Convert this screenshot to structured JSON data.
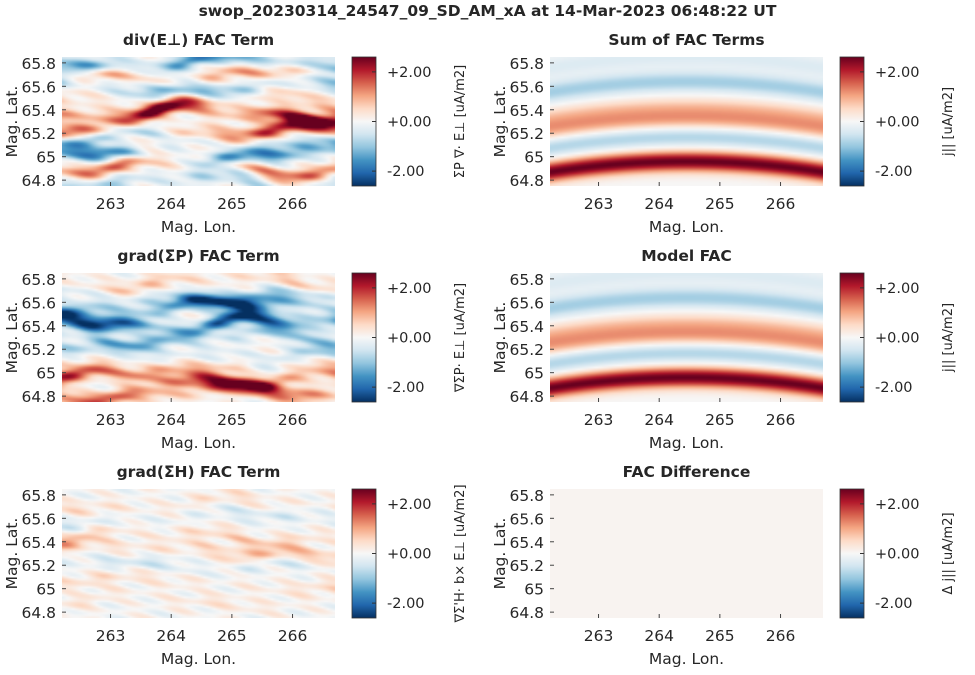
{
  "suptitle": "swop_20230314_24547_09_SD_AM_xA at 14-Mar-2023 06:48:22 UT",
  "colors": {
    "colormap": [
      "#053061",
      "#2166ac",
      "#4393c3",
      "#92c5de",
      "#d1e5f0",
      "#f7f7f7",
      "#fddbc7",
      "#f4a582",
      "#d6604d",
      "#b2182b",
      "#67001f"
    ],
    "background": "#ffffff",
    "text": "#262626"
  },
  "chart_data": [
    {
      "type": "heatmap",
      "title": "div(E⊥) FAC Term",
      "xlabel": "Mag. Lon.",
      "ylabel": "Mag. Lat.",
      "xlim": [
        262.2,
        266.7
      ],
      "ylim": [
        64.75,
        65.85
      ],
      "xticks": [
        263,
        264,
        265,
        266
      ],
      "yticks": [
        "65.8",
        "65.6",
        "65.4",
        "65.2",
        "65",
        "64.8"
      ],
      "clim": [
        -2.6,
        2.6
      ],
      "colorbar": {
        "ticks": [
          "+2.00",
          "+0.00",
          "-2.00"
        ],
        "label": "ΣP ∇· E⊥ [uA/m2]"
      },
      "pattern": "noisy",
      "bands": [
        {
          "lat": 65.8,
          "amp": -2.0
        },
        {
          "lat": 65.7,
          "amp": 1.2
        },
        {
          "lat": 65.6,
          "amp": -1.4
        },
        {
          "lat": 65.47,
          "amp": 0.8
        },
        {
          "lat": 65.37,
          "amp": 2.4
        },
        {
          "lat": 65.22,
          "amp": 2.1
        },
        {
          "lat": 65.13,
          "amp": -1.3
        },
        {
          "lat": 65.0,
          "amp": -1.8
        },
        {
          "lat": 64.9,
          "amp": 1.6
        },
        {
          "lat": 64.8,
          "amp": -1.0
        }
      ]
    },
    {
      "type": "heatmap",
      "title": "Sum of FAC Terms",
      "xlabel": "Mag. Lon.",
      "ylabel": "Mag. Lat.",
      "xlim": [
        262.2,
        266.7
      ],
      "ylim": [
        64.75,
        65.85
      ],
      "xticks": [
        263,
        264,
        265,
        266
      ],
      "yticks": [
        "65.8",
        "65.6",
        "65.4",
        "65.2",
        "65",
        "64.8"
      ],
      "clim": [
        -2.6,
        2.6
      ],
      "colorbar": {
        "ticks": [
          "+2.00",
          "+0.00",
          "-2.00"
        ],
        "label": "j|| [uA/m2]"
      },
      "pattern": "smooth",
      "bands": [
        {
          "lat": 65.76,
          "amp": -0.35
        },
        {
          "lat": 65.55,
          "amp": -0.9
        },
        {
          "lat": 65.33,
          "amp": 0.7
        },
        {
          "lat": 65.23,
          "amp": 1.0
        },
        {
          "lat": 65.08,
          "amp": -0.8
        },
        {
          "lat": 64.87,
          "amp": 2.6
        }
      ]
    },
    {
      "type": "heatmap",
      "title": "grad(ΣP) FAC Term",
      "xlabel": "Mag. Lon.",
      "ylabel": "Mag. Lat.",
      "xlim": [
        262.2,
        266.7
      ],
      "ylim": [
        64.75,
        65.85
      ],
      "xticks": [
        263,
        264,
        265,
        266
      ],
      "yticks": [
        "65.8",
        "65.6",
        "65.4",
        "65.2",
        "65",
        "64.8"
      ],
      "clim": [
        -2.6,
        2.6
      ],
      "colorbar": {
        "ticks": [
          "+2.00",
          "+0.00",
          "-2.00"
        ],
        "label": "∇ΣP· E⊥ [uA/m2]"
      },
      "pattern": "noisy",
      "bands": [
        {
          "lat": 65.78,
          "amp": 0.7
        },
        {
          "lat": 65.66,
          "amp": -1.0
        },
        {
          "lat": 65.56,
          "amp": -2.0
        },
        {
          "lat": 65.42,
          "amp": -2.6
        },
        {
          "lat": 65.3,
          "amp": -1.2
        },
        {
          "lat": 65.18,
          "amp": -0.8
        },
        {
          "lat": 65.05,
          "amp": 0.9
        },
        {
          "lat": 64.95,
          "amp": 2.2
        },
        {
          "lat": 64.83,
          "amp": 1.7
        }
      ]
    },
    {
      "type": "heatmap",
      "title": "Model FAC",
      "xlabel": "Mag. Lon.",
      "ylabel": "Mag. Lat.",
      "xlim": [
        262.2,
        266.7
      ],
      "ylim": [
        64.75,
        65.85
      ],
      "xticks": [
        263,
        264,
        265,
        266
      ],
      "yticks": [
        "65.8",
        "65.6",
        "65.4",
        "65.2",
        "65",
        "64.8"
      ],
      "clim": [
        -2.6,
        2.6
      ],
      "colorbar": {
        "ticks": [
          "+2.00",
          "+0.00",
          "-2.00"
        ],
        "label": "j|| [uA/m2]"
      },
      "pattern": "smooth",
      "bands": [
        {
          "lat": 65.76,
          "amp": -0.35
        },
        {
          "lat": 65.55,
          "amp": -0.9
        },
        {
          "lat": 65.33,
          "amp": 0.7
        },
        {
          "lat": 65.23,
          "amp": 1.0
        },
        {
          "lat": 65.08,
          "amp": -0.8
        },
        {
          "lat": 64.87,
          "amp": 2.6
        }
      ]
    },
    {
      "type": "heatmap",
      "title": "grad(ΣH) FAC Term",
      "xlabel": "Mag. Lon.",
      "ylabel": "Mag. Lat.",
      "xlim": [
        262.2,
        266.7
      ],
      "ylim": [
        64.75,
        65.85
      ],
      "xticks": [
        263,
        264,
        265,
        266
      ],
      "yticks": [
        "65.8",
        "65.6",
        "65.4",
        "65.2",
        "65",
        "64.8"
      ],
      "clim": [
        -2.6,
        2.6
      ],
      "colorbar": {
        "ticks": [
          "+2.00",
          "+0.00",
          "-2.00"
        ],
        "label": "∇Σ'H· b× E⊥ [uA/m2]"
      },
      "pattern": "noisy",
      "bands": [
        {
          "lat": 65.72,
          "amp": 0.4
        },
        {
          "lat": 65.6,
          "amp": -0.4
        },
        {
          "lat": 65.45,
          "amp": 0.6
        },
        {
          "lat": 65.32,
          "amp": 0.9
        },
        {
          "lat": 65.2,
          "amp": -0.5
        },
        {
          "lat": 65.05,
          "amp": 0.4
        },
        {
          "lat": 64.9,
          "amp": 0.3
        }
      ]
    },
    {
      "type": "heatmap",
      "title": "FAC Difference",
      "xlabel": "Mag. Lon.",
      "ylabel": "Mag. Lat.",
      "xlim": [
        262.2,
        266.7
      ],
      "ylim": [
        64.75,
        65.85
      ],
      "xticks": [
        263,
        264,
        265,
        266
      ],
      "yticks": [
        "65.8",
        "65.6",
        "65.4",
        "65.2",
        "65",
        "64.8"
      ],
      "clim": [
        -2.6,
        2.6
      ],
      "colorbar": {
        "ticks": [
          "+2.00",
          "+0.00",
          "-2.00"
        ],
        "label": "Δ j|| [uA/m2]"
      },
      "pattern": "flat",
      "bands": [
        {
          "lat": 65.3,
          "amp": 0.08
        }
      ]
    }
  ]
}
